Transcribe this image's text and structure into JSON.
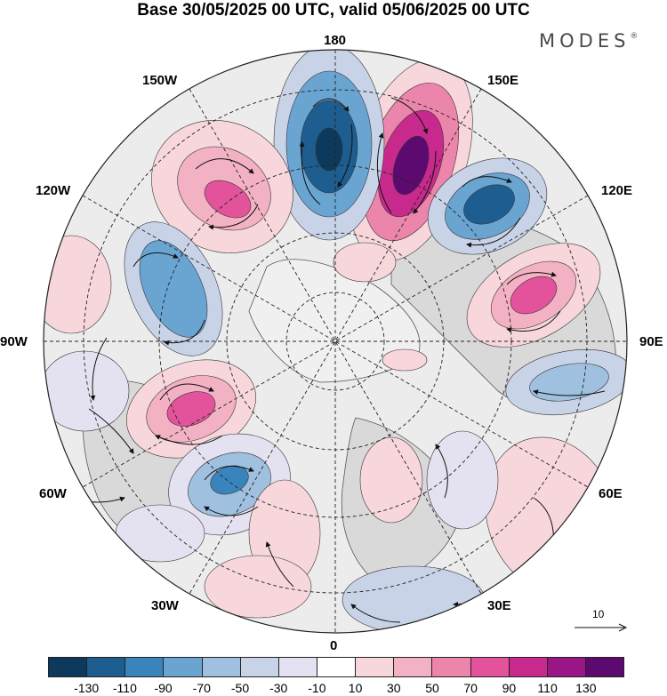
{
  "title": "Base 30/05/2025 00 UTC, valid 05/06/2025 00 UTC",
  "brand": "MODES",
  "brand_mark": "®",
  "lon_labels": {
    "n180": "180",
    "e150": "150E",
    "e120": "120E",
    "e90": "90E",
    "e60": "60E",
    "e30": "30E",
    "z0": "0",
    "w30": "30W",
    "w60": "60W",
    "w90": "90W",
    "w120": "120W",
    "w150": "150W"
  },
  "vector_scale_label": "10",
  "colorbar": {
    "colors": [
      "#0d3a5c",
      "#1d5d8f",
      "#3a84bd",
      "#6aa5d2",
      "#9fc0df",
      "#c9d3e8",
      "#e4e2f0",
      "#ffffff",
      "#f8d7dc",
      "#f3b1c4",
      "#ec85ab",
      "#e2539b",
      "#c72a8c",
      "#9a1585",
      "#5c0a70"
    ],
    "ticks": [
      "-130",
      "-110",
      "-90",
      "-70",
      "-50",
      "-30",
      "-10",
      "10",
      "30",
      "50",
      "70",
      "90",
      "110",
      "130"
    ]
  },
  "map_features": {
    "projection": "north polar stereographic",
    "anomaly_centers": [
      {
        "name": "Pacific-high-160E",
        "sign": "positive",
        "strength": 110
      },
      {
        "name": "Pacific-low-175E",
        "sign": "negative",
        "strength": -110
      },
      {
        "name": "Siberia-low-125E",
        "sign": "negative",
        "strength": -90
      },
      {
        "name": "Siberia-high-105E",
        "sign": "positive",
        "strength": 70
      },
      {
        "name": "Alaska-high-140W",
        "sign": "positive",
        "strength": 70
      },
      {
        "name": "Canada-low-110W",
        "sign": "negative",
        "strength": -70
      },
      {
        "name": "Labrador-high-75W",
        "sign": "positive",
        "strength": 70
      },
      {
        "name": "Atlantic-low-50W",
        "sign": "negative",
        "strength": -90
      },
      {
        "name": "Central-Asia-low-80E",
        "sign": "negative",
        "strength": -50
      },
      {
        "name": "Asia-high-60E",
        "sign": "positive",
        "strength": 30
      },
      {
        "name": "Europe-low-30E",
        "sign": "negative",
        "strength": -30
      }
    ]
  }
}
